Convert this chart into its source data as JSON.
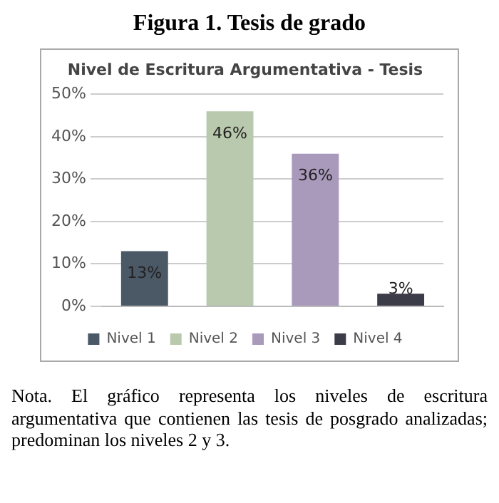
{
  "chart_data": {
    "type": "bar",
    "title": "Nivel de Escritura Argumentativa - Tesis",
    "annotations": [
      "Figura 1. Tesis de grado",
      "Nota. El gráfico representa los niveles de escritura argumentativa que contienen las tesis de posgrado analizadas; predominan los niveles 2 y 3."
    ],
    "categories": [
      null
    ],
    "series": [
      {
        "name": "Nivel 1",
        "color": "#4b5866",
        "values": [
          13
        ],
        "value_labels": [
          "13%"
        ]
      },
      {
        "name": "Nivel 2",
        "color": "#b9c9ad",
        "values": [
          46
        ],
        "value_labels": [
          "46%"
        ]
      },
      {
        "name": "Nivel 3",
        "color": "#a999bb",
        "values": [
          36
        ],
        "value_labels": [
          "36%"
        ]
      },
      {
        "name": "Nivel 4",
        "color": "#3c3c48",
        "values": [
          3
        ],
        "value_labels": [
          "3%"
        ]
      }
    ],
    "ylim": [
      0,
      50
    ],
    "yticks": [
      {
        "value": 0,
        "label": "0%"
      },
      {
        "value": 10,
        "label": "10%"
      },
      {
        "value": 20,
        "label": "20%"
      },
      {
        "value": 30,
        "label": "30%"
      },
      {
        "value": 40,
        "label": "40%"
      },
      {
        "value": 50,
        "label": "50%"
      }
    ],
    "grid": "y",
    "legend": "bottom"
  }
}
